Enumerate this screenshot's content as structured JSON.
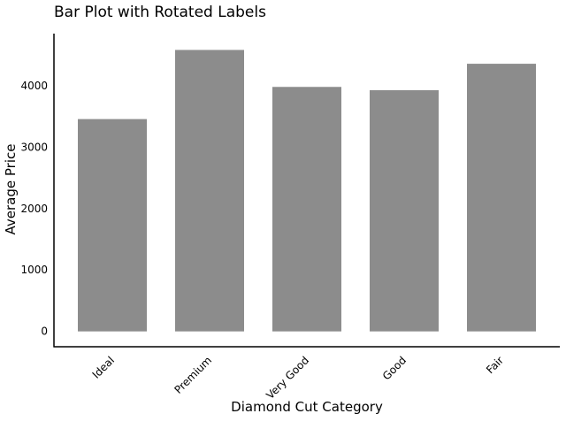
{
  "chart_data": {
    "type": "bar",
    "title": "Bar Plot with Rotated Labels",
    "xlabel": "Diamond Cut Category",
    "ylabel": "Average Price",
    "categories": [
      "Ideal",
      "Premium",
      "Very Good",
      "Good",
      "Fair"
    ],
    "values": [
      3458,
      4584,
      3982,
      3929,
      4359
    ],
    "ylim": [
      -250,
      4850
    ],
    "yticks": [
      "0",
      "1000",
      "2000",
      "3000",
      "4000"
    ],
    "xtick_rotation_deg": 45,
    "grid": false,
    "legend": "none",
    "bar_color": "#8c8c8c",
    "axis_color": "#000000"
  }
}
